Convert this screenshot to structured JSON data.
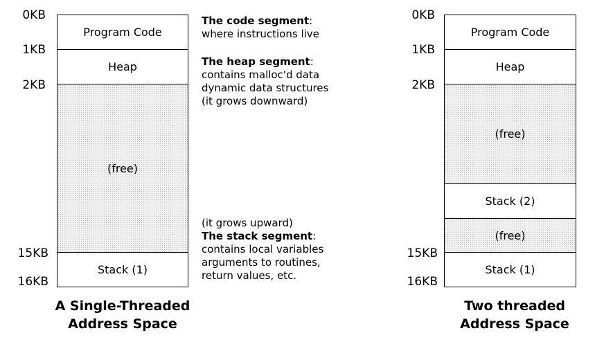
{
  "left": {
    "addresses": {
      "a0": "0KB",
      "a1": "1KB",
      "a2": "2KB",
      "a15": "15KB",
      "a16": "16KB"
    },
    "segments": {
      "code": "Program Code",
      "heap": "Heap",
      "free": "(free)",
      "stack1": "Stack (1)"
    },
    "caption": [
      "A Single-Threaded",
      "Address Space"
    ]
  },
  "annotations": {
    "code_title": "The code segment",
    "code_colon": ":",
    "code_desc": "where instructions live",
    "heap_title": "The heap segment",
    "heap_colon": ":",
    "heap_lines": [
      "contains malloc'd data",
      "dynamic data structures",
      "(it grows downward)"
    ],
    "grows_up": "(it grows upward)",
    "stack_title": "The stack segment",
    "stack_colon": ":",
    "stack_lines": [
      "contains local variables",
      "arguments to routines,",
      "return values, etc."
    ]
  },
  "right": {
    "addresses": {
      "a0": "0KB",
      "a1": "1KB",
      "a2": "2KB",
      "a15": "15KB",
      "a16": "16KB"
    },
    "segments": {
      "code": "Program Code",
      "heap": "Heap",
      "free_top": "(free)",
      "stack2": "Stack (2)",
      "free_mid": "(free)",
      "stack1": "Stack (1)"
    },
    "caption": [
      "Two threaded",
      "Address Space"
    ]
  }
}
